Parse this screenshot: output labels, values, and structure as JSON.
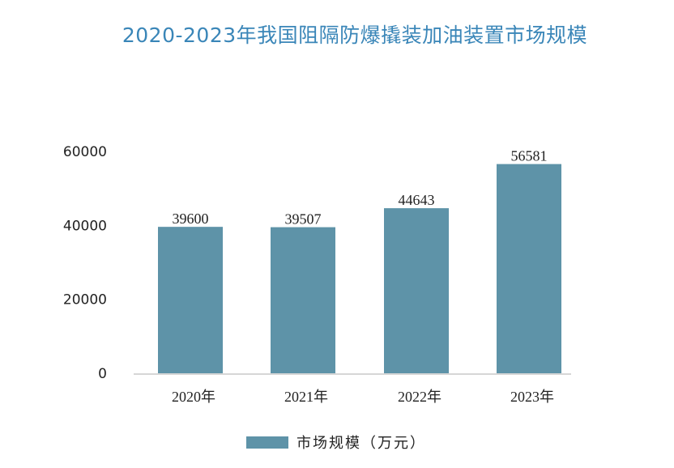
{
  "colors": {
    "bar": "#5e93a8",
    "title": "#3a86b8",
    "axis": "#c8c8c8"
  },
  "chart_data": {
    "type": "bar",
    "title": "2020-2023年我国阻隔防爆撬装加油装置市场规模",
    "categories": [
      "2020年",
      "2021年",
      "2022年",
      "2023年"
    ],
    "series": [
      {
        "name": "市场规模（万元）",
        "values": [
          39600,
          39507,
          44643,
          56581
        ]
      }
    ],
    "y_ticks": [
      0,
      20000,
      40000,
      60000
    ],
    "ylim": [
      0,
      60000
    ],
    "xlabel": "",
    "ylabel": "",
    "grid": false,
    "legend_position": "bottom"
  }
}
